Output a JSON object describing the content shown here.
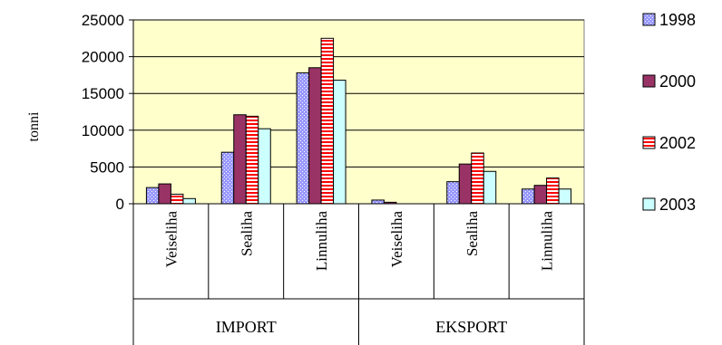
{
  "chart_data": {
    "type": "bar",
    "ylabel": "tonni",
    "ylim": [
      0,
      25000
    ],
    "yticks": [
      0,
      5000,
      10000,
      15000,
      20000,
      25000
    ],
    "grid": true,
    "legend_position": "right",
    "plot_background": "#ffffcc",
    "groups": [
      {
        "label": "IMPORT",
        "categories": [
          "Veiseliha",
          "Sealiha",
          "Linnuliha"
        ]
      },
      {
        "label": "EKSPORT",
        "categories": [
          "Veiseliha",
          "Sealiha",
          "Linnuliha"
        ]
      }
    ],
    "categories": [
      "Veiseliha",
      "Sealiha",
      "Linnuliha",
      "Veiseliha",
      "Sealiha",
      "Linnuliha"
    ],
    "series": [
      {
        "name": "1998",
        "color": "#9999ff",
        "pattern": "dots",
        "values": [
          2200,
          7000,
          17800,
          500,
          3000,
          2000
        ]
      },
      {
        "name": "2000",
        "color": "#993366",
        "pattern": "solid",
        "values": [
          2700,
          12100,
          18500,
          200,
          5400,
          2500
        ]
      },
      {
        "name": "2002",
        "color": "#ff0000",
        "pattern": "hstripes",
        "values": [
          1300,
          11900,
          22500,
          0,
          6900,
          3500
        ]
      },
      {
        "name": "2003",
        "color": "#ccffff",
        "pattern": "solid",
        "values": [
          700,
          10200,
          16800,
          0,
          4400,
          2000
        ]
      }
    ]
  }
}
